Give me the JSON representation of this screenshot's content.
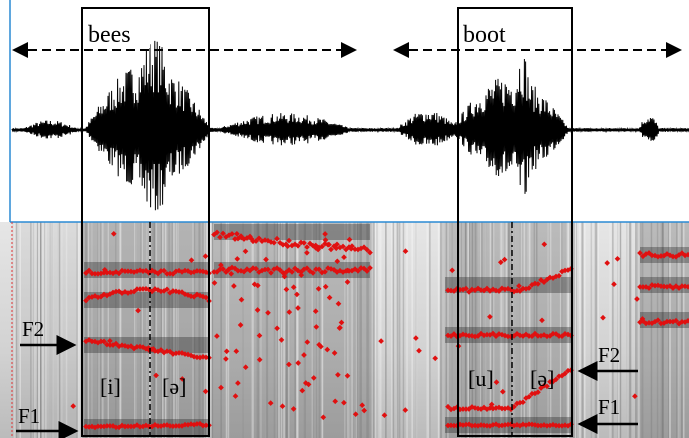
{
  "word_labels": [
    "bees",
    "boot"
  ],
  "segment_labels": [
    "[i]",
    "[ə]",
    "[u]",
    "[ə]"
  ],
  "formant_labels": [
    "F2",
    "F1",
    "F2",
    "F1"
  ]
}
